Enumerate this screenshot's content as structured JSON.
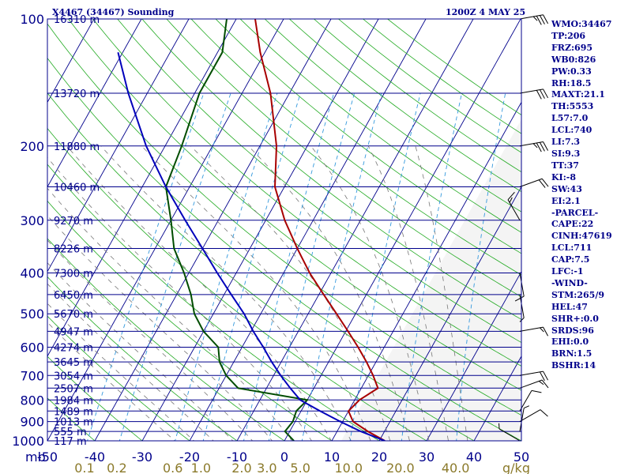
{
  "header": {
    "station": "X4467 (34467) Sounding",
    "valid_time": "1200Z  4 MAY 25"
  },
  "indices": [
    "WMO:34467",
    "TP:206",
    "FRZ:695",
    "WB0:826",
    "PW:0.33",
    "RH:18.5",
    "MAXT:21.1",
    "TH:5553",
    "L57:7.0",
    "LCL:740",
    "LI:7.3",
    "SI:9.3",
    "TT:37",
    "KI:-8",
    "SW:43",
    "EI:2.1",
    "-PARCEL-",
    "CAPE:22",
    "CINH:47619",
    "LCL:711",
    "CAP:7.5",
    "LFC:-1",
    "-WIND-",
    "STM:265/9",
    "HEL:47",
    "SHR+:0.0",
    "SRDS:96",
    "EHI:0.0",
    "BRN:1.5",
    "BSHR:14"
  ],
  "colors": {
    "background": "#ffffff",
    "moist_region": "#f4f4f4",
    "isobar": "#00008b",
    "isotherm": "#00008b",
    "dry_adiabat": "#22aa22",
    "moist_adiabat": "#777777",
    "mixing_ratio": "#3399dd",
    "temperature": "#a80000",
    "dewpoint": "#004d00",
    "parcel": "#0000bb",
    "wind_barbs": "#000000",
    "text": "#00008b",
    "mixing_ratio_labels": "#8b7a2b"
  },
  "chart_data": {
    "type": "line",
    "title": "X4467 (34467) Sounding",
    "subtitle": "1200Z  4 MAY 25",
    "pressure_label": "mb",
    "mixing_ratio_unit": "g/kg",
    "temperature_unit": "C",
    "x_range_c": [
      -50,
      50
    ],
    "y_range_mb": [
      1000,
      100
    ],
    "y_scale": "log",
    "isobars": [
      {
        "p": 100,
        "label": "100",
        "height": "16310 m"
      },
      {
        "p": 150,
        "label": "",
        "height": "13720 m"
      },
      {
        "p": 200,
        "label": "200",
        "height": "11880 m"
      },
      {
        "p": 250,
        "label": "",
        "height": "10460 m"
      },
      {
        "p": 300,
        "label": "300",
        "height": "9270 m"
      },
      {
        "p": 350,
        "label": "",
        "height": "8226 m"
      },
      {
        "p": 400,
        "label": "400",
        "height": "7300 m"
      },
      {
        "p": 450,
        "label": "",
        "height": "6450 m"
      },
      {
        "p": 500,
        "label": "500",
        "height": "5670 m"
      },
      {
        "p": 550,
        "label": "",
        "height": "4947 m"
      },
      {
        "p": 600,
        "label": "600",
        "height": "4274 m"
      },
      {
        "p": 650,
        "label": "",
        "height": "3645 m"
      },
      {
        "p": 700,
        "label": "700",
        "height": "3054 m"
      },
      {
        "p": 750,
        "label": "",
        "height": "2507 m"
      },
      {
        "p": 800,
        "label": "800",
        "height": "1984 m"
      },
      {
        "p": 850,
        "label": "",
        "height": "1489 m"
      },
      {
        "p": 900,
        "label": "900",
        "height": "1013 m"
      },
      {
        "p": 950,
        "label": "",
        "height": "555 m"
      },
      {
        "p": 1000,
        "label": "1000",
        "height": "117 m"
      }
    ],
    "temperature_ticks": [
      -50,
      -40,
      -30,
      -20,
      -10,
      0,
      10,
      20,
      30,
      40,
      50
    ],
    "mixing_ratio_ticks": [
      "0.1",
      "0.2",
      "0.6",
      "1.0",
      "2.0",
      "3.0",
      "5.0",
      "10.0",
      "20.0",
      "40.0"
    ],
    "series": [
      {
        "name": "Temperature",
        "key": "temperature",
        "points": [
          [
            1000,
            21.2
          ],
          [
            950,
            16.5
          ],
          [
            900,
            12.2
          ],
          [
            850,
            10.0
          ],
          [
            800,
            11.0
          ],
          [
            750,
            13.5
          ],
          [
            700,
            11.0
          ],
          [
            650,
            8.0
          ],
          [
            600,
            4.5
          ],
          [
            550,
            0.5
          ],
          [
            500,
            -4.0
          ],
          [
            450,
            -9.0
          ],
          [
            400,
            -14.5
          ],
          [
            350,
            -20.0
          ],
          [
            300,
            -26.0
          ],
          [
            250,
            -32.0
          ],
          [
            200,
            -36.5
          ],
          [
            150,
            -44.0
          ],
          [
            120,
            -51.0
          ],
          [
            100,
            -56.0
          ]
        ]
      },
      {
        "name": "Dewpoint",
        "key": "dewpoint",
        "points": [
          [
            1000,
            2.0
          ],
          [
            950,
            -1.0
          ],
          [
            900,
            -0.5
          ],
          [
            850,
            -1.0
          ],
          [
            800,
            0.0
          ],
          [
            750,
            -16.0
          ],
          [
            700,
            -20.0
          ],
          [
            650,
            -23.0
          ],
          [
            600,
            -25.0
          ],
          [
            550,
            -30.0
          ],
          [
            500,
            -34.0
          ],
          [
            450,
            -37.0
          ],
          [
            400,
            -41.0
          ],
          [
            350,
            -46.0
          ],
          [
            300,
            -50.0
          ],
          [
            250,
            -55.0
          ],
          [
            200,
            -56.5
          ],
          [
            150,
            -59.0
          ],
          [
            120,
            -59.0
          ],
          [
            100,
            -62.0
          ]
        ]
      },
      {
        "name": "Parcel",
        "key": "parcel",
        "points": [
          [
            1000,
            21.2
          ],
          [
            950,
            15.0
          ],
          [
            900,
            9.5
          ],
          [
            850,
            4.0
          ],
          [
            800,
            -1.5
          ],
          [
            750,
            -5.0
          ],
          [
            700,
            -8.5
          ],
          [
            650,
            -12.0
          ],
          [
            600,
            -15.5
          ],
          [
            550,
            -19.5
          ],
          [
            500,
            -23.5
          ],
          [
            450,
            -28.5
          ],
          [
            400,
            -34.0
          ],
          [
            350,
            -40.0
          ],
          [
            300,
            -47.0
          ],
          [
            250,
            -55.0
          ],
          [
            200,
            -64.0
          ],
          [
            150,
            -74.0
          ],
          [
            120,
            -81.0
          ]
        ]
      }
    ],
    "wind_barbs": [
      {
        "p": 1000,
        "dir": 60,
        "spd": 5
      },
      {
        "p": 950,
        "dir": 350,
        "spd": 5
      },
      {
        "p": 900,
        "dir": 300,
        "spd": 10
      },
      {
        "p": 850,
        "dir": 330,
        "spd": 10
      },
      {
        "p": 750,
        "dir": 290,
        "spd": 15
      },
      {
        "p": 700,
        "dir": 280,
        "spd": 20
      },
      {
        "p": 550,
        "dir": 280,
        "spd": 15
      },
      {
        "p": 450,
        "dir": 190,
        "spd": 5
      },
      {
        "p": 400,
        "dir": 190,
        "spd": 10
      },
      {
        "p": 300,
        "dir": 30,
        "spd": 15
      },
      {
        "p": 250,
        "dir": 290,
        "spd": 20
      },
      {
        "p": 200,
        "dir": 280,
        "spd": 35
      },
      {
        "p": 150,
        "dir": 280,
        "spd": 30
      },
      {
        "p": 100,
        "dir": 280,
        "spd": 35
      }
    ]
  }
}
